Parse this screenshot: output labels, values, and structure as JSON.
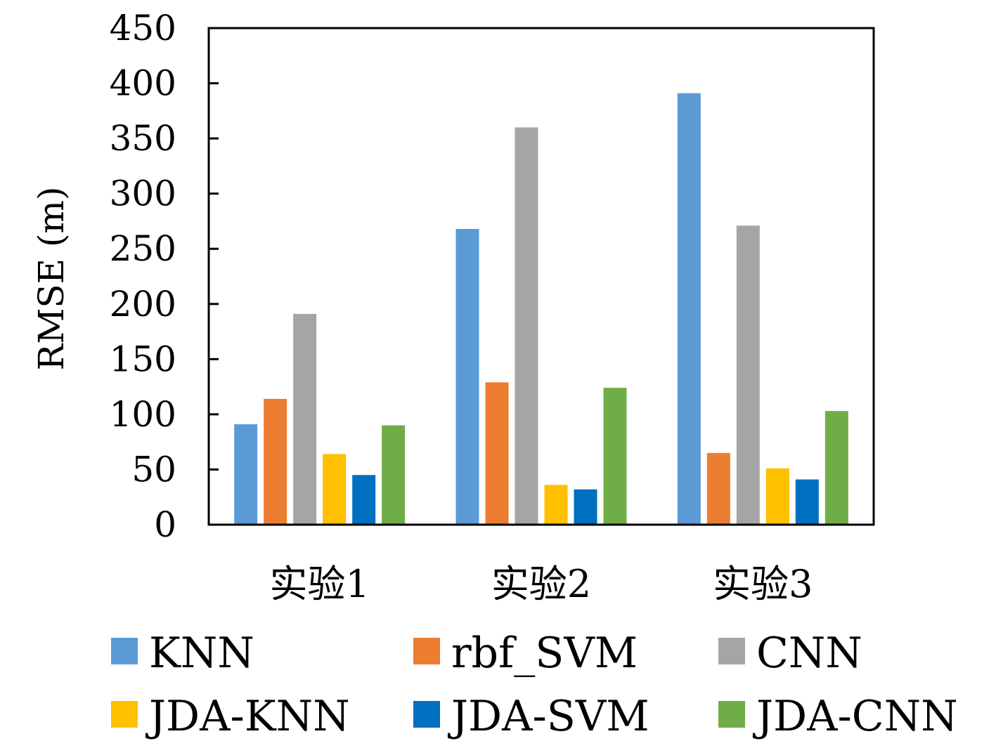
{
  "chart_data": {
    "type": "bar",
    "xlabel": "",
    "ylabel": "RMSE (m)",
    "ylim": [
      0,
      450
    ],
    "yticks": [
      0,
      50,
      100,
      150,
      200,
      250,
      300,
      350,
      400,
      450
    ],
    "grid": false,
    "legend_position": "bottom",
    "categories": [
      "实验1",
      "实验2",
      "实验3"
    ],
    "series": [
      {
        "name": "KNN",
        "color": "#5B9BD5",
        "values": [
          91,
          268,
          391
        ]
      },
      {
        "name": "rbf_SVM",
        "color": "#ED7D31",
        "values": [
          114,
          129,
          65
        ]
      },
      {
        "name": "CNN",
        "color": "#A5A5A5",
        "values": [
          191,
          360,
          271
        ]
      },
      {
        "name": "JDA-KNN",
        "color": "#FFC000",
        "values": [
          64,
          36,
          51
        ]
      },
      {
        "name": "JDA-SVM",
        "color": "#0070C0",
        "values": [
          45,
          32,
          41
        ]
      },
      {
        "name": "JDA-CNN",
        "color": "#70AD47",
        "values": [
          90,
          124,
          103
        ]
      }
    ]
  }
}
